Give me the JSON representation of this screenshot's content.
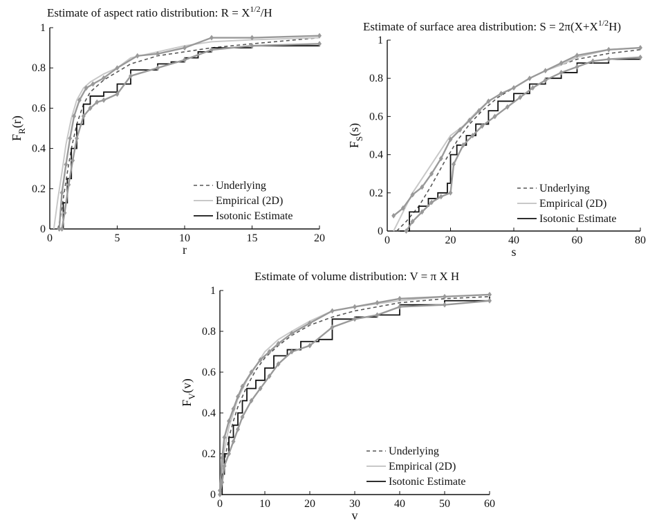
{
  "colors": {
    "underlying": "#555555",
    "empirical": "#c8c8c8",
    "isotonic": "#111111",
    "bounds": "#999999",
    "axis": "#111111"
  },
  "chart_data": [
    {
      "type": "line",
      "title_main": "Estimate of aspect ratio distribution: R = X",
      "title_sup": "1/2",
      "title_tail": "/H",
      "xlabel": "r",
      "ylabel_main": "F",
      "ylabel_sub": "R",
      "ylabel_tail": "(r)",
      "xlim": [
        0,
        20
      ],
      "ylim": [
        0,
        1
      ],
      "xticks": [
        "0",
        "5",
        "10",
        "15",
        "20"
      ],
      "yticks": [
        "0",
        "0.2",
        "0.4",
        "0.6",
        "0.8",
        "1"
      ],
      "legend_position": "bottom-right",
      "legend": [
        "Underlying",
        "Empirical (2D)",
        "Isotonic Estimate"
      ],
      "series": [
        {
          "name": "Underlying",
          "style": "dashed",
          "x": [
            0.6,
            0.8,
            1,
            1.3,
            1.6,
            2,
            2.5,
            3,
            4,
            5,
            6,
            8,
            10,
            12,
            15,
            20
          ],
          "y": [
            0,
            0.06,
            0.15,
            0.28,
            0.4,
            0.52,
            0.62,
            0.68,
            0.74,
            0.78,
            0.82,
            0.86,
            0.88,
            0.9,
            0.92,
            0.95
          ]
        },
        {
          "name": "Empirical (2D)",
          "style": "solid-light",
          "x": [
            0.3,
            0.6,
            0.9,
            1.2,
            1.6,
            2,
            2.5,
            3,
            4,
            5,
            6,
            8,
            10,
            12,
            15,
            20
          ],
          "y": [
            0,
            0.15,
            0.28,
            0.42,
            0.55,
            0.64,
            0.7,
            0.73,
            0.77,
            0.8,
            0.85,
            0.88,
            0.91,
            0.93,
            0.94,
            0.95
          ]
        },
        {
          "name": "Isotonic Estimate",
          "style": "step",
          "x": [
            0.8,
            1,
            1.3,
            1.6,
            2,
            2.5,
            3,
            4,
            5,
            6,
            8,
            9,
            10,
            11,
            12,
            15,
            20
          ],
          "y": [
            0,
            0.13,
            0.25,
            0.4,
            0.52,
            0.62,
            0.66,
            0.68,
            0.72,
            0.79,
            0.82,
            0.83,
            0.85,
            0.88,
            0.9,
            0.91,
            0.93
          ]
        },
        {
          "name": "",
          "style": "band",
          "x": [
            0.9,
            1.1,
            1.4,
            1.7,
            2,
            2.5,
            3,
            3.5,
            4,
            5,
            6,
            8,
            10,
            12,
            15,
            20
          ],
          "y": [
            0,
            0.08,
            0.22,
            0.34,
            0.45,
            0.56,
            0.6,
            0.63,
            0.64,
            0.67,
            0.76,
            0.8,
            0.84,
            0.89,
            0.91,
            0.92
          ]
        },
        {
          "name": "",
          "style": "band",
          "x": [
            0.7,
            0.9,
            1.2,
            1.5,
            1.8,
            2.2,
            2.7,
            3.2,
            4,
            5,
            6.5,
            8,
            10,
            12,
            15,
            20
          ],
          "y": [
            0,
            0.18,
            0.32,
            0.45,
            0.56,
            0.64,
            0.7,
            0.72,
            0.75,
            0.8,
            0.86,
            0.87,
            0.9,
            0.95,
            0.95,
            0.96
          ]
        }
      ]
    },
    {
      "type": "line",
      "title_main": "Estimate of surface area distribution: S = 2π(X+X",
      "title_sup": "1/2",
      "title_tail": "H)",
      "xlabel": "s",
      "ylabel_main": "F",
      "ylabel_sub": "S",
      "ylabel_tail": "(s)",
      "xlim": [
        0,
        80
      ],
      "ylim": [
        0,
        1
      ],
      "xticks": [
        "0",
        "20",
        "40",
        "60",
        "80"
      ],
      "yticks": [
        "0",
        "0.2",
        "0.4",
        "0.6",
        "0.8",
        "1"
      ],
      "legend_position": "bottom-right",
      "legend": [
        "Underlying",
        "Empirical (2D)",
        "Isotonic Estimate"
      ],
      "series": [
        {
          "name": "Underlying",
          "style": "dashed",
          "x": [
            3,
            6,
            10,
            14,
            18,
            22,
            26,
            30,
            35,
            40,
            45,
            50,
            55,
            60,
            70,
            80
          ],
          "y": [
            0,
            0.05,
            0.13,
            0.24,
            0.36,
            0.47,
            0.56,
            0.63,
            0.7,
            0.75,
            0.8,
            0.84,
            0.87,
            0.9,
            0.93,
            0.95
          ]
        },
        {
          "name": "Empirical (2D)",
          "style": "solid-light",
          "x": [
            2,
            5,
            8,
            12,
            16,
            20,
            24,
            28,
            32,
            36,
            40,
            45,
            50,
            55,
            60,
            70,
            80
          ],
          "y": [
            0,
            0.1,
            0.2,
            0.3,
            0.4,
            0.5,
            0.55,
            0.62,
            0.68,
            0.72,
            0.75,
            0.8,
            0.84,
            0.87,
            0.91,
            0.95,
            0.96
          ]
        },
        {
          "name": "Isotonic Estimate",
          "style": "step",
          "x": [
            4,
            7,
            10,
            13,
            16,
            19,
            20,
            22,
            25,
            28,
            32,
            35,
            40,
            45,
            50,
            55,
            60,
            70,
            80
          ],
          "y": [
            0,
            0.1,
            0.13,
            0.17,
            0.2,
            0.25,
            0.4,
            0.45,
            0.5,
            0.56,
            0.63,
            0.68,
            0.72,
            0.77,
            0.8,
            0.83,
            0.88,
            0.9,
            0.91
          ]
        },
        {
          "name": "",
          "style": "band",
          "x": [
            6,
            8,
            11,
            14,
            17,
            20,
            21,
            24,
            27,
            30,
            34,
            38,
            42,
            46,
            50,
            55,
            60,
            65,
            70,
            80
          ],
          "y": [
            0,
            0.05,
            0.1,
            0.15,
            0.18,
            0.2,
            0.35,
            0.45,
            0.5,
            0.55,
            0.6,
            0.65,
            0.7,
            0.75,
            0.79,
            0.83,
            0.86,
            0.89,
            0.9,
            0.91
          ]
        },
        {
          "name": "",
          "style": "band",
          "x": [
            2,
            5,
            8,
            11,
            14,
            17,
            20,
            23,
            26,
            29,
            32,
            36,
            40,
            45,
            50,
            55,
            60,
            70,
            80
          ],
          "y": [
            0.08,
            0.12,
            0.19,
            0.23,
            0.3,
            0.38,
            0.48,
            0.53,
            0.58,
            0.63,
            0.68,
            0.72,
            0.75,
            0.8,
            0.84,
            0.88,
            0.92,
            0.95,
            0.96
          ]
        }
      ]
    },
    {
      "type": "line",
      "title_main": "Estimate of volume distribution: V = π X H",
      "title_sup": "",
      "title_tail": "",
      "xlabel": "v",
      "ylabel_main": "F",
      "ylabel_sub": "V",
      "ylabel_tail": "(v)",
      "xlim": [
        0,
        60
      ],
      "ylim": [
        0,
        1
      ],
      "xticks": [
        "0",
        "10",
        "20",
        "30",
        "40",
        "50",
        "60"
      ],
      "yticks": [
        "0",
        "0.2",
        "0.4",
        "0.6",
        "0.8",
        "1"
      ],
      "legend_position": "bottom-right",
      "legend": [
        "Underlying",
        "Empirical (2D)",
        "Isotonic Estimate"
      ],
      "series": [
        {
          "name": "Underlying",
          "style": "dashed",
          "x": [
            0,
            0.5,
            1,
            2,
            3,
            4,
            6,
            8,
            10,
            13,
            16,
            20,
            25,
            30,
            40,
            50,
            60
          ],
          "y": [
            0,
            0.08,
            0.16,
            0.28,
            0.36,
            0.43,
            0.53,
            0.61,
            0.67,
            0.73,
            0.78,
            0.83,
            0.87,
            0.9,
            0.94,
            0.96,
            0.97
          ]
        },
        {
          "name": "Empirical (2D)",
          "style": "solid-light",
          "x": [
            0,
            0.5,
            1,
            2,
            3,
            4,
            6,
            8,
            10,
            13,
            16,
            20,
            25,
            30,
            40,
            50,
            60
          ],
          "y": [
            0,
            0.12,
            0.22,
            0.33,
            0.4,
            0.47,
            0.56,
            0.63,
            0.7,
            0.76,
            0.8,
            0.85,
            0.9,
            0.92,
            0.95,
            0.97,
            0.98
          ]
        },
        {
          "name": "Isotonic Estimate",
          "style": "step",
          "x": [
            0,
            0.5,
            1,
            2,
            3,
            4,
            5,
            6,
            8,
            10,
            12,
            15,
            18,
            22,
            25,
            30,
            35,
            40,
            50,
            60
          ],
          "y": [
            0,
            0.1,
            0.2,
            0.28,
            0.34,
            0.4,
            0.46,
            0.52,
            0.56,
            0.62,
            0.68,
            0.71,
            0.75,
            0.76,
            0.86,
            0.87,
            0.88,
            0.93,
            0.95,
            0.97
          ]
        },
        {
          "name": "",
          "style": "band",
          "x": [
            0,
            0.5,
            1,
            2,
            3,
            4,
            5,
            7,
            9,
            11,
            13,
            16,
            20,
            25,
            30,
            35,
            40,
            50,
            60
          ],
          "y": [
            0,
            0.06,
            0.14,
            0.2,
            0.26,
            0.32,
            0.38,
            0.46,
            0.52,
            0.58,
            0.64,
            0.7,
            0.73,
            0.82,
            0.86,
            0.88,
            0.92,
            0.93,
            0.95
          ]
        },
        {
          "name": "",
          "style": "band",
          "x": [
            0,
            0.5,
            1,
            2,
            3,
            4,
            5,
            7,
            9,
            11,
            13,
            16,
            20,
            25,
            30,
            35,
            40,
            50,
            60
          ],
          "y": [
            0.02,
            0.18,
            0.28,
            0.36,
            0.42,
            0.48,
            0.53,
            0.6,
            0.66,
            0.7,
            0.74,
            0.79,
            0.84,
            0.9,
            0.92,
            0.94,
            0.96,
            0.97,
            0.98
          ]
        }
      ]
    }
  ]
}
